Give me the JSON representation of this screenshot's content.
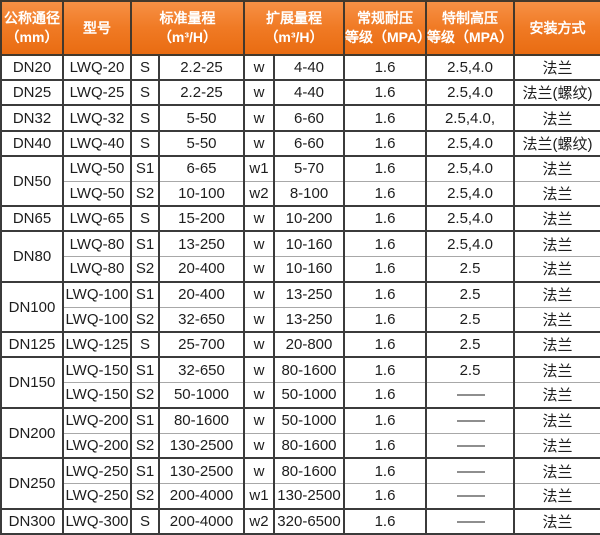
{
  "chart_data": {
    "type": "table",
    "headers": [
      {
        "text": "公称通径\n（mm）",
        "colspan": 1
      },
      {
        "text": "型号",
        "colspan": 1
      },
      {
        "text": "标准量程\n（m³/H）",
        "colspan": 2
      },
      {
        "text": "扩展量程\n（m³/H）",
        "colspan": 2
      },
      {
        "text": "常规耐压\n等级（MPA）",
        "colspan": 1
      },
      {
        "text": "特制高压\n等级（MPA）",
        "colspan": 1
      },
      {
        "text": "安装方式",
        "colspan": 1
      }
    ],
    "rows": [
      {
        "dn": "DN20",
        "dn_rowspan": 1,
        "cells": [
          "LWQ-20",
          "S",
          "2.2-25",
          "w",
          "4-40",
          "1.6",
          "2.5,4.0",
          "法兰"
        ]
      },
      {
        "dn": "DN25",
        "dn_rowspan": 1,
        "cells": [
          "LWQ-25",
          "S",
          "2.2-25",
          "w",
          "4-40",
          "1.6",
          "2.5,4.0",
          "法兰(螺纹)"
        ]
      },
      {
        "dn": "DN32",
        "dn_rowspan": 1,
        "cells": [
          "LWQ-32",
          "S",
          "5-50",
          "w",
          "6-60",
          "1.6",
          "2.5,4.0,",
          "法兰"
        ]
      },
      {
        "dn": "DN40",
        "dn_rowspan": 1,
        "cells": [
          "LWQ-40",
          "S",
          "5-50",
          "w",
          "6-60",
          "1.6",
          "2.5,4.0",
          "法兰(螺纹)"
        ]
      },
      {
        "dn": "DN50",
        "dn_rowspan": 2,
        "cells": [
          "LWQ-50",
          "S1",
          "6-65",
          "w1",
          "5-70",
          "1.6",
          "2.5,4.0",
          "法兰"
        ]
      },
      {
        "cells": [
          "LWQ-50",
          "S2",
          "10-100",
          "w2",
          "8-100",
          "1.6",
          "2.5,4.0",
          "法兰"
        ]
      },
      {
        "dn": "DN65",
        "dn_rowspan": 1,
        "cells": [
          "LWQ-65",
          "S",
          "15-200",
          "w",
          "10-200",
          "1.6",
          "2.5,4.0",
          "法兰"
        ]
      },
      {
        "dn": "DN80",
        "dn_rowspan": 2,
        "cells": [
          "LWQ-80",
          "S1",
          "13-250",
          "w",
          "10-160",
          "1.6",
          "2.5,4.0",
          "法兰"
        ]
      },
      {
        "cells": [
          "LWQ-80",
          "S2",
          "20-400",
          "w",
          "10-160",
          "1.6",
          "2.5",
          "法兰"
        ]
      },
      {
        "dn": "DN100",
        "dn_rowspan": 2,
        "cells": [
          "LWQ-100",
          "S1",
          "20-400",
          "w",
          "13-250",
          "1.6",
          "2.5",
          "法兰"
        ]
      },
      {
        "cells": [
          "LWQ-100",
          "S2",
          "32-650",
          "w",
          "13-250",
          "1.6",
          "2.5",
          "法兰"
        ]
      },
      {
        "dn": "DN125",
        "dn_rowspan": 1,
        "cells": [
          "LWQ-125",
          "S",
          "25-700",
          "w",
          "20-800",
          "1.6",
          "2.5",
          "法兰"
        ]
      },
      {
        "dn": "DN150",
        "dn_rowspan": 2,
        "cells": [
          "LWQ-150",
          "S1",
          "32-650",
          "w",
          "80-1600",
          "1.6",
          "2.5",
          "法兰"
        ]
      },
      {
        "cells": [
          "LWQ-150",
          "S2",
          "50-1000",
          "w",
          "50-1000",
          "1.6",
          "——",
          "法兰"
        ]
      },
      {
        "dn": "DN200",
        "dn_rowspan": 2,
        "cells": [
          "LWQ-200",
          "S1",
          "80-1600",
          "w",
          "50-1000",
          "1.6",
          "——",
          "法兰"
        ]
      },
      {
        "cells": [
          "LWQ-200",
          "S2",
          "130-2500",
          "w",
          "80-1600",
          "1.6",
          "——",
          "法兰"
        ]
      },
      {
        "dn": "DN250",
        "dn_rowspan": 2,
        "cells": [
          "LWQ-250",
          "S1",
          "130-2500",
          "w",
          "80-1600",
          "1.6",
          "——",
          "法兰"
        ]
      },
      {
        "cells": [
          "LWQ-250",
          "S2",
          "200-4000",
          "w1",
          "130-2500",
          "1.6",
          "——",
          "法兰"
        ]
      },
      {
        "dn": "DN300",
        "dn_rowspan": 1,
        "cells": [
          "LWQ-300",
          "S",
          "200-4000",
          "w2",
          "320-6500",
          "1.6",
          "——",
          "法兰"
        ]
      }
    ]
  },
  "colors": {
    "header_orange": "#ef7820",
    "header_text": "#ffffff",
    "border_dark": "#3b3b3b",
    "border_light": "#a8a8a8",
    "body_text": "#1d1d1d",
    "background": "#ffffff"
  }
}
